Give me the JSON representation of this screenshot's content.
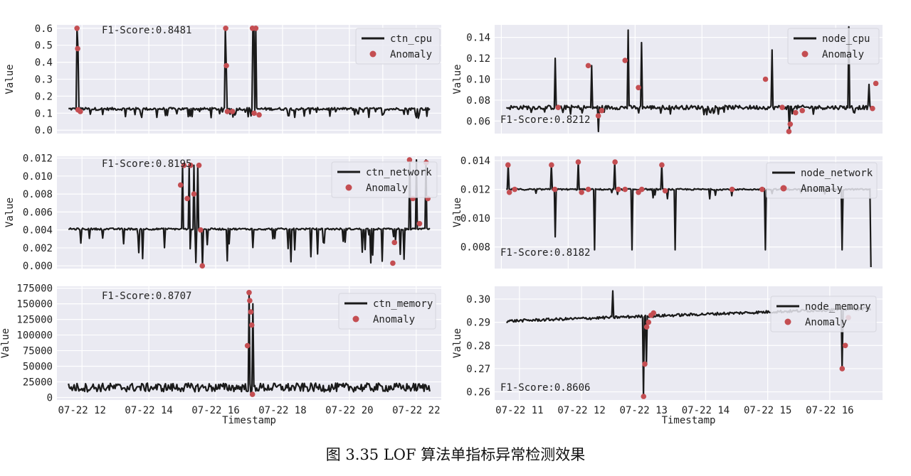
{
  "figure": {
    "caption": "图 3.35 LOF 算法单指标异常检测效果",
    "colors": {
      "plot_bg": "#eaeaf2",
      "grid": "#ffffff",
      "line": "#1a1a1a",
      "anomaly": "#c44e52"
    },
    "x_time_label": "Timestamp"
  },
  "chart_data": [
    {
      "id": "ctn_cpu",
      "type": "line",
      "ylabel": "Value",
      "f1_text": "F1-Score:0.8481",
      "legend": [
        "ctn_cpu",
        "Anomaly"
      ],
      "yticks": [
        "0.0",
        "0.1",
        "0.2",
        "0.3",
        "0.4",
        "0.5",
        "0.6"
      ],
      "ylim": [
        -0.02,
        0.62
      ],
      "xticks": [],
      "xlim": [
        11.25,
        22.75
      ],
      "xlabel": "",
      "series": [
        {
          "name": "ctn_cpu",
          "base": 0.125,
          "noise": 0.008,
          "dip_prob": 0.12,
          "dip_min": 0.07,
          "dip_max": 0.11,
          "spikes": [
            [
              11.85,
              0.6
            ],
            [
              11.87,
              0.48
            ],
            [
              16.3,
              0.6
            ],
            [
              16.32,
              0.38
            ],
            [
              17.1,
              0.6
            ],
            [
              17.15,
              0.6
            ],
            [
              17.2,
              0.6
            ],
            [
              14.0,
              0.12
            ]
          ]
        }
      ],
      "anomalies": [
        [
          11.85,
          0.6
        ],
        [
          11.87,
          0.48
        ],
        [
          11.88,
          0.12
        ],
        [
          11.95,
          0.11
        ],
        [
          16.3,
          0.6
        ],
        [
          16.32,
          0.38
        ],
        [
          16.35,
          0.11
        ],
        [
          16.5,
          0.11
        ],
        [
          17.1,
          0.6
        ],
        [
          17.2,
          0.6
        ],
        [
          17.15,
          0.1
        ],
        [
          17.3,
          0.09
        ]
      ]
    },
    {
      "id": "node_cpu",
      "type": "line",
      "ylabel": "Value",
      "f1_text": "F1-Score:0.8212",
      "legend": [
        "node_cpu",
        "Anomaly"
      ],
      "yticks": [
        "0.06",
        "0.08",
        "0.10",
        "0.12",
        "0.14"
      ],
      "ylim": [
        0.048,
        0.152
      ],
      "xticks": [],
      "xlim": [
        10.9,
        16.7
      ],
      "xlabel": "",
      "series": [
        {
          "name": "node_cpu",
          "base": 0.073,
          "noise": 0.002,
          "dip_prob": 0.05,
          "dip_min": 0.066,
          "dip_max": 0.069,
          "spikes": [
            [
              11.8,
              0.12
            ],
            [
              12.35,
              0.113
            ],
            [
              12.45,
              0.05
            ],
            [
              12.9,
              0.147
            ],
            [
              13.1,
              0.135
            ],
            [
              15.05,
              0.128
            ],
            [
              15.3,
              0.05
            ],
            [
              16.2,
              0.15
            ],
            [
              16.5,
              0.095
            ]
          ]
        }
      ],
      "anomalies": [
        [
          11.85,
          0.073
        ],
        [
          12.3,
          0.113
        ],
        [
          12.45,
          0.065
        ],
        [
          12.5,
          0.07
        ],
        [
          12.85,
          0.118
        ],
        [
          13.05,
          0.092
        ],
        [
          14.95,
          0.1
        ],
        [
          15.2,
          0.073
        ],
        [
          15.3,
          0.05
        ],
        [
          15.32,
          0.057
        ],
        [
          15.4,
          0.068
        ],
        [
          15.5,
          0.07
        ],
        [
          16.55,
          0.072
        ],
        [
          16.6,
          0.096
        ]
      ]
    },
    {
      "id": "ctn_network",
      "type": "line",
      "ylabel": "Value",
      "f1_text": "F1-Score:0.8195",
      "legend": [
        "ctn_network",
        "Anomaly"
      ],
      "yticks": [
        "0.000",
        "0.002",
        "0.004",
        "0.006",
        "0.008",
        "0.010",
        "0.012"
      ],
      "ylim": [
        -0.0003,
        0.0122
      ],
      "xticks": [],
      "xlim": [
        11.25,
        22.75
      ],
      "xlabel": "",
      "series": [
        {
          "name": "ctn_network",
          "base": 0.0041,
          "noise": 0.0001,
          "dip_prob": 0.1,
          "dip_min": 0.0003,
          "dip_max": 0.0035,
          "spikes": [
            [
              15.0,
              0.0112
            ],
            [
              15.2,
              0.0112
            ],
            [
              15.35,
              0.0112
            ],
            [
              15.45,
              0.0112
            ],
            [
              15.6,
              0.0
            ],
            [
              21.8,
              0.0118
            ],
            [
              22.0,
              0.0118
            ],
            [
              22.3,
              0.0118
            ]
          ]
        }
      ],
      "anomalies": [
        [
          14.95,
          0.009
        ],
        [
          15.05,
          0.0112
        ],
        [
          15.15,
          0.0075
        ],
        [
          15.25,
          0.0112
        ],
        [
          15.35,
          0.008
        ],
        [
          15.5,
          0.0112
        ],
        [
          15.55,
          0.004
        ],
        [
          15.6,
          0.0
        ],
        [
          21.3,
          0.0003
        ],
        [
          21.35,
          0.0026
        ],
        [
          21.8,
          0.0118
        ],
        [
          21.9,
          0.0075
        ],
        [
          22.1,
          0.0047
        ],
        [
          22.3,
          0.0115
        ],
        [
          22.35,
          0.0075
        ]
      ]
    },
    {
      "id": "node_network",
      "type": "line",
      "ylabel": "Value",
      "f1_text": "F1-Score:0.8182",
      "legend": [
        "node_network",
        "Anomaly"
      ],
      "yticks": [
        "0.008",
        "0.010",
        "0.012",
        "0.014"
      ],
      "ylim": [
        0.0065,
        0.0143
      ],
      "xticks": [],
      "xlim": [
        10.9,
        16.7
      ],
      "xlabel": "",
      "series": [
        {
          "name": "node_network",
          "base": 0.012,
          "noise": 5e-05,
          "dip_prob": 0.04,
          "dip_min": 0.0113,
          "dip_max": 0.0118,
          "spikes": [
            [
              11.1,
              0.0137
            ],
            [
              11.75,
              0.0137
            ],
            [
              11.8,
              0.0087
            ],
            [
              12.15,
              0.0139
            ],
            [
              12.4,
              0.0078
            ],
            [
              12.7,
              0.0139
            ],
            [
              12.95,
              0.0078
            ],
            [
              13.4,
              0.0137
            ],
            [
              13.6,
              0.0078
            ],
            [
              14.95,
              0.0078
            ],
            [
              16.1,
              0.0078
            ],
            [
              16.55,
              0.0066
            ]
          ]
        }
      ],
      "anomalies": [
        [
          11.1,
          0.0137
        ],
        [
          11.12,
          0.0118
        ],
        [
          11.2,
          0.012
        ],
        [
          11.75,
          0.0137
        ],
        [
          11.8,
          0.012
        ],
        [
          12.15,
          0.0139
        ],
        [
          12.2,
          0.0118
        ],
        [
          12.3,
          0.012
        ],
        [
          12.7,
          0.0139
        ],
        [
          12.75,
          0.012
        ],
        [
          12.85,
          0.012
        ],
        [
          13.05,
          0.0118
        ],
        [
          13.1,
          0.012
        ],
        [
          13.4,
          0.0137
        ],
        [
          13.45,
          0.0119
        ],
        [
          14.45,
          0.012
        ],
        [
          14.9,
          0.012
        ]
      ]
    },
    {
      "id": "ctn_memory",
      "type": "line",
      "ylabel": "Value",
      "f1_text": "F1-Score:0.8707",
      "legend": [
        "ctn_memory",
        "Anomaly"
      ],
      "yticks": [
        "0",
        "25000",
        "50000",
        "75000",
        "100000",
        "125000",
        "150000",
        "175000"
      ],
      "ylim": [
        -4000,
        178000
      ],
      "xticks": [
        "07-22 12",
        "07-22 14",
        "07-22 16",
        "07-22 18",
        "07-22 20",
        "07-22 22"
      ],
      "xtick_vals": [
        12,
        14,
        16,
        18,
        20,
        22
      ],
      "xlim": [
        11.25,
        22.75
      ],
      "xlabel": "Timestamp",
      "series": [
        {
          "name": "ctn_memory",
          "base": 16000,
          "noise": 7000,
          "dip_prob": 0.0,
          "dip_min": 0,
          "dip_max": 0,
          "spikes": [
            [
              17.0,
              168000
            ],
            [
              17.05,
              5000
            ],
            [
              17.1,
              150000
            ]
          ]
        }
      ],
      "anomalies": [
        [
          16.95,
          83000
        ],
        [
          17.0,
          168000
        ],
        [
          17.02,
          155000
        ],
        [
          17.05,
          137000
        ],
        [
          17.08,
          116000
        ],
        [
          17.1,
          5000
        ]
      ]
    },
    {
      "id": "node_memory",
      "type": "line",
      "ylabel": "Value",
      "f1_text": "F1-Score:0.8606",
      "legend": [
        "node_memory",
        "Anomaly"
      ],
      "yticks": [
        "0.26",
        "0.27",
        "0.28",
        "0.29",
        "0.30"
      ],
      "ylim": [
        0.2565,
        0.3055
      ],
      "xticks": [
        "07-22 11",
        "07-22 12",
        "07-22 13",
        "07-22 14",
        "07-22 15",
        "07-22 16"
      ],
      "xtick_vals": [
        11,
        12,
        13,
        14,
        15,
        16
      ],
      "xlim": [
        10.6,
        16.85
      ],
      "xlabel": "Timestamp",
      "series": [
        {
          "name": "node_memory",
          "base_start": 0.2905,
          "base_end": 0.296,
          "noise": 0.0006,
          "dip_prob": 0.0,
          "dip_min": 0,
          "dip_max": 0,
          "spikes": [
            [
              12.5,
              0.3035
            ],
            [
              13.0,
              0.258
            ],
            [
              13.05,
              0.272
            ],
            [
              16.2,
              0.27
            ]
          ]
        }
      ],
      "anomalies": [
        [
          13.0,
          0.258
        ],
        [
          13.02,
          0.272
        ],
        [
          13.05,
          0.288
        ],
        [
          13.08,
          0.29
        ],
        [
          13.12,
          0.293
        ],
        [
          13.16,
          0.294
        ],
        [
          16.2,
          0.27
        ],
        [
          16.25,
          0.28
        ],
        [
          16.3,
          0.292
        ]
      ]
    }
  ]
}
